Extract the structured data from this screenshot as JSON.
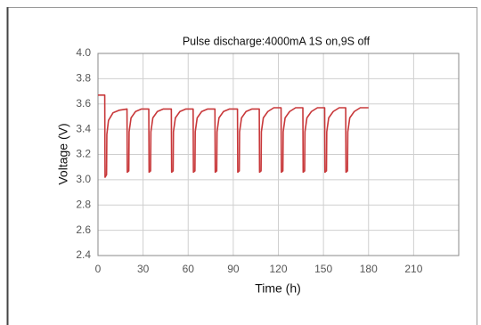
{
  "chart_data": {
    "type": "line",
    "title": "Pulse discharge:4000mA   1S on,9S off",
    "x_label": "Time (h)",
    "y_label": "Voltage (V)",
    "x": [
      0,
      4.5,
      4.7,
      5.7,
      5.9,
      7,
      10,
      14,
      19.3,
      19.5,
      20.5,
      20.7,
      22,
      25,
      29,
      33.8,
      34,
      35,
      35.2,
      36.5,
      39.5,
      43.5,
      48.8,
      49,
      50,
      50.2,
      51.5,
      54.5,
      58.5,
      63.3,
      63.5,
      64.5,
      64.7,
      66,
      69,
      73,
      77.8,
      78,
      79,
      79.2,
      80.5,
      83.5,
      87.5,
      92.8,
      93,
      94,
      94.2,
      95.5,
      98.5,
      102.5,
      107.3,
      107.5,
      108.5,
      108.7,
      110,
      113,
      117,
      121.8,
      122,
      123,
      123.2,
      124.5,
      127.5,
      131.5,
      136.3,
      136.5,
      137.5,
      137.7,
      139,
      142,
      146,
      150.8,
      151,
      152,
      152.2,
      153.5,
      156.5,
      160.5,
      164.8,
      165,
      166,
      166.2,
      167.5,
      170.5,
      174.5,
      180
    ],
    "series": [
      {
        "color": "#c8383a",
        "values": [
          3.67,
          3.67,
          3.02,
          3.04,
          3.36,
          3.47,
          3.53,
          3.55,
          3.56,
          3.06,
          3.07,
          3.38,
          3.49,
          3.54,
          3.56,
          3.56,
          3.06,
          3.07,
          3.38,
          3.49,
          3.54,
          3.56,
          3.56,
          3.06,
          3.07,
          3.38,
          3.49,
          3.54,
          3.56,
          3.56,
          3.06,
          3.07,
          3.38,
          3.49,
          3.54,
          3.56,
          3.56,
          3.06,
          3.07,
          3.38,
          3.49,
          3.54,
          3.56,
          3.56,
          3.06,
          3.07,
          3.38,
          3.49,
          3.54,
          3.56,
          3.56,
          3.06,
          3.07,
          3.38,
          3.49,
          3.54,
          3.57,
          3.57,
          3.06,
          3.07,
          3.38,
          3.49,
          3.54,
          3.57,
          3.57,
          3.06,
          3.07,
          3.38,
          3.49,
          3.54,
          3.57,
          3.57,
          3.06,
          3.07,
          3.38,
          3.49,
          3.54,
          3.57,
          3.57,
          3.06,
          3.07,
          3.38,
          3.49,
          3.54,
          3.57,
          3.57
        ]
      }
    ],
    "xlim": [
      0,
      240
    ],
    "xticks": [
      0,
      30,
      60,
      90,
      120,
      150,
      180,
      210
    ],
    "ylim": [
      2.4,
      4.0
    ],
    "yticks": [
      2.4,
      2.6,
      2.8,
      {
        "value": 3,
        "label": "3.0"
      },
      3.2,
      3.4,
      3.6,
      3.8,
      {
        "value": 4,
        "label": "4.0"
      }
    ],
    "grid": true
  }
}
